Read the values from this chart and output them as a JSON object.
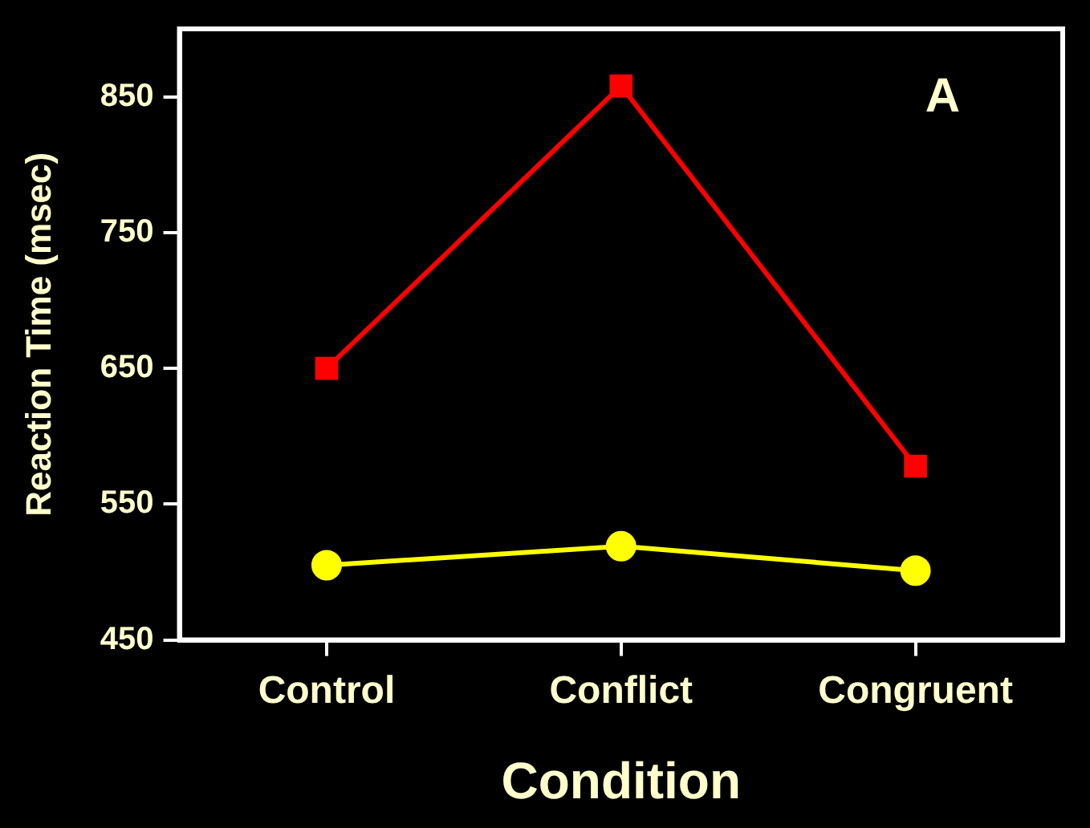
{
  "chart_data": {
    "type": "line",
    "xlabel": "Condition",
    "ylabel": "Reaction Time (msec)",
    "categories": [
      "Control",
      "Conflict",
      "Congruent"
    ],
    "series": [
      {
        "color": "#ff0000",
        "marker": "square",
        "values": [
          650,
          858,
          578
        ]
      },
      {
        "color": "#ffff00",
        "marker": "circle",
        "values": [
          505,
          519,
          501
        ]
      }
    ],
    "ylim": [
      450,
      900
    ],
    "yticks": [
      450,
      550,
      650,
      750,
      850
    ],
    "grid": false,
    "legend": false,
    "annotations": [
      "A"
    ]
  }
}
